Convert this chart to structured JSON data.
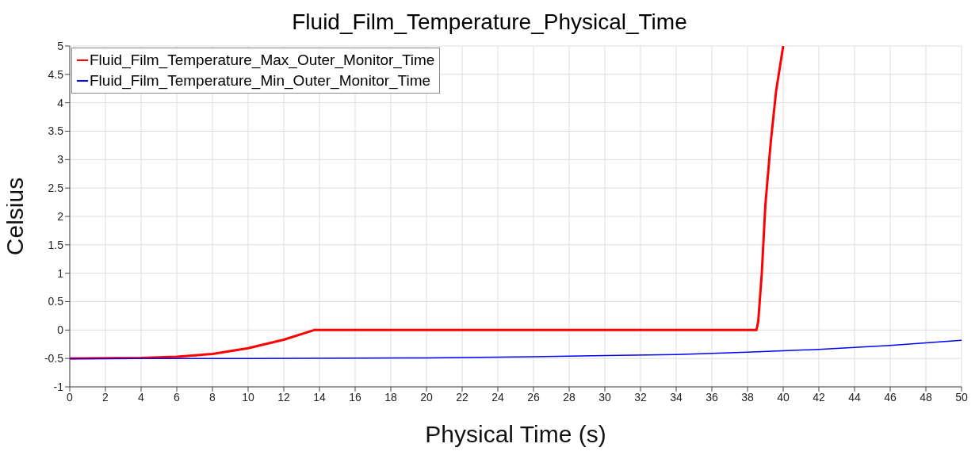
{
  "chart_data": {
    "type": "line",
    "title": "Fluid_Film_Temperature_Physical_Time",
    "xlabel": "Physical Time (s)",
    "ylabel": "Celsius",
    "xlim": [
      0,
      50
    ],
    "xticks": [
      0,
      2,
      4,
      6,
      8,
      10,
      12,
      14,
      16,
      18,
      20,
      22,
      24,
      26,
      28,
      30,
      32,
      34,
      36,
      38,
      40,
      42,
      44,
      46,
      48,
      50
    ],
    "ylim": [
      -1,
      5
    ],
    "yticks": [
      -1,
      -0.5,
      0,
      0.5,
      1,
      1.5,
      2,
      2.5,
      3,
      3.5,
      4,
      4.5,
      5
    ],
    "grid": true,
    "legend": "top left",
    "marker": "none",
    "line_style": "solid",
    "series": [
      {
        "name": "Fluid_Film_Temperature_Max_Outer_Monitor_Time",
        "color": "#ff0000",
        "x": [
          0,
          4,
          6,
          8,
          10,
          12,
          13.7,
          38.5,
          38.6,
          38.8,
          39.0,
          39.3,
          39.6,
          40
        ],
        "values": [
          -0.5,
          -0.49,
          -0.47,
          -0.42,
          -0.32,
          -0.17,
          0,
          0,
          0.15,
          1.0,
          2.2,
          3.3,
          4.2,
          5
        ]
      },
      {
        "name": "Fluid_Film_Temperature_Min_Outer_Monitor_Time",
        "color": "#0000ff",
        "x": [
          0,
          10,
          20,
          26,
          30,
          34,
          38,
          42,
          46,
          50
        ],
        "values": [
          -0.5,
          -0.5,
          -0.49,
          -0.47,
          -0.45,
          -0.43,
          -0.39,
          -0.34,
          -0.27,
          -0.18
        ]
      }
    ]
  }
}
